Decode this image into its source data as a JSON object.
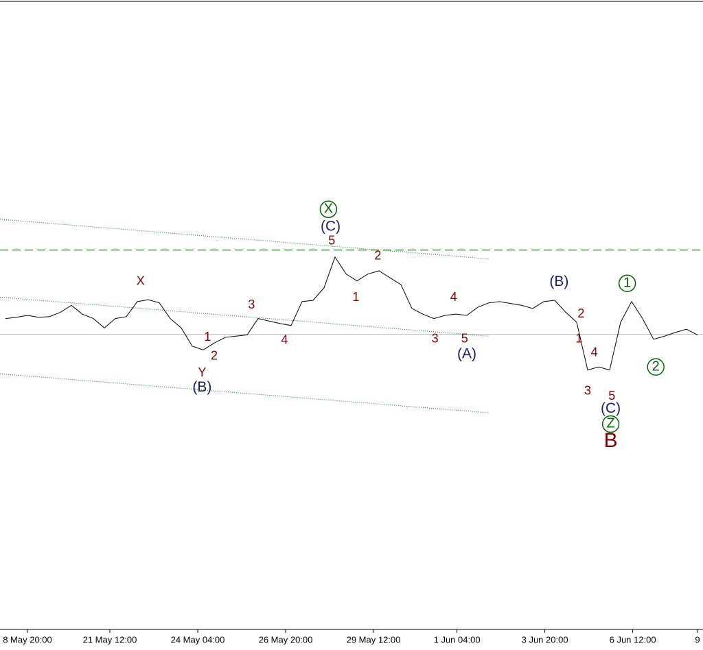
{
  "chart_data": {
    "type": "line",
    "x": [
      0,
      1,
      2,
      3,
      4,
      5,
      6,
      7,
      8,
      9,
      10,
      11,
      12,
      13,
      14,
      15,
      16,
      17,
      18,
      19,
      20,
      21,
      22,
      23,
      24,
      25,
      26,
      27,
      28,
      29,
      30,
      31,
      32,
      33,
      34,
      35,
      36,
      37,
      38,
      39,
      40,
      41,
      42,
      43,
      44,
      45,
      46,
      47,
      48,
      49,
      50,
      51,
      52,
      53,
      54,
      55,
      56,
      57,
      58,
      59,
      60,
      61,
      62,
      63
    ],
    "series": [
      {
        "color": "#000000",
        "values": [
          49.5,
          49.7,
          50.0,
          49.7,
          49.8,
          50.5,
          51.6,
          50.2,
          49.5,
          48.0,
          49.5,
          49.8,
          52.2,
          52.5,
          52.0,
          49.5,
          48.0,
          45.1,
          44.5,
          45.6,
          46.5,
          46.7,
          46.9,
          49.5,
          49.1,
          48.7,
          48.4,
          52.2,
          52.4,
          54.4,
          59.3,
          56.6,
          55.5,
          56.6,
          57.1,
          56.0,
          54.9,
          51.1,
          50.2,
          49.5,
          50.0,
          50.2,
          50.0,
          51.3,
          52.0,
          52.2,
          51.9,
          51.6,
          51.1,
          52.2,
          52.4,
          50.5,
          48.9,
          41.3,
          41.8,
          41.3,
          48.9,
          52.2,
          49.5,
          46.2,
          46.7,
          47.3,
          47.8,
          46.9
        ]
      }
    ],
    "xlim": [
      -0.5,
      63.5
    ],
    "ylim": [
      0,
      100
    ],
    "xticks": [
      {
        "value": 2,
        "label": "8 May 20:00"
      },
      {
        "value": 9.5,
        "label": "21 May 12:00"
      },
      {
        "value": 17.5,
        "label": "24 May 04:00"
      },
      {
        "value": 25.5,
        "label": "26 May 20:00"
      },
      {
        "value": 33.5,
        "label": "29 May 12:00"
      },
      {
        "value": 41.1,
        "label": "1 Jun 04:00"
      },
      {
        "value": 49.1,
        "label": "3 Jun 20:00"
      },
      {
        "value": 57.1,
        "label": "6 Jun 12:00"
      },
      {
        "value": 63,
        "label": "9"
      }
    ],
    "hlines": [
      {
        "y": 47,
        "color": "#c0c0c0",
        "style": "solid"
      },
      {
        "y": 60.4,
        "color": "#006400",
        "style": "dashed"
      }
    ],
    "trendlines": [
      {
        "x": [
          -0.5,
          44
        ],
        "y": [
          65.3,
          59.0
        ],
        "color": "#008000"
      },
      {
        "x": [
          -0.5,
          44
        ],
        "y": [
          52.9,
          46.7
        ],
        "color": "#008000"
      },
      {
        "x": [
          -0.5,
          44
        ],
        "y": [
          40.7,
          34.5
        ],
        "color": "#008000"
      }
    ],
    "annotations": [
      {
        "text": "X",
        "x": 12.3,
        "y": 55.4,
        "color": "#800000"
      },
      {
        "text": "Y",
        "x": 17.9,
        "y": 40.8,
        "color": "#800000"
      },
      {
        "text": "(B)",
        "x": 17.9,
        "y": 38.5,
        "color": "#1a1a6e"
      },
      {
        "text": "1",
        "x": 18.4,
        "y": 46.5,
        "color": "#800000"
      },
      {
        "text": "2",
        "x": 19.0,
        "y": 43.5,
        "color": "#800000"
      },
      {
        "text": "3",
        "x": 22.4,
        "y": 51.6,
        "color": "#800000"
      },
      {
        "text": "4",
        "x": 25.4,
        "y": 46.0,
        "color": "#800000"
      },
      {
        "text": "X",
        "x": 29.4,
        "y": 66.9,
        "color": "#006400",
        "circled": true
      },
      {
        "text": "(C)",
        "x": 29.6,
        "y": 64.1,
        "color": "#1a1a6e"
      },
      {
        "text": "5",
        "x": 29.7,
        "y": 61.8,
        "color": "#800000"
      },
      {
        "text": "2",
        "x": 33.9,
        "y": 59.4,
        "color": "#800000"
      },
      {
        "text": "1",
        "x": 31.9,
        "y": 52.8,
        "color": "#800000"
      },
      {
        "text": "3",
        "x": 39.1,
        "y": 46.2,
        "color": "#800000"
      },
      {
        "text": "4",
        "x": 40.8,
        "y": 52.8,
        "color": "#800000"
      },
      {
        "text": "5",
        "x": 41.8,
        "y": 46.2,
        "color": "#800000"
      },
      {
        "text": "(A)",
        "x": 42.0,
        "y": 43.8,
        "color": "#1a1a6e"
      },
      {
        "text": "(B)",
        "x": 50.4,
        "y": 55.3,
        "color": "#1a1a6e"
      },
      {
        "text": "2",
        "x": 52.4,
        "y": 50.2,
        "color": "#800000"
      },
      {
        "text": "1",
        "x": 52.2,
        "y": 46.2,
        "color": "#800000"
      },
      {
        "text": "4",
        "x": 53.6,
        "y": 44.0,
        "color": "#800000"
      },
      {
        "text": "3",
        "x": 53.0,
        "y": 37.9,
        "color": "#800000"
      },
      {
        "text": "5",
        "x": 55.2,
        "y": 37.1,
        "color": "#800000"
      },
      {
        "text": "(C)",
        "x": 55.1,
        "y": 35.1,
        "color": "#1a1a6e"
      },
      {
        "text": "Z",
        "x": 55.1,
        "y": 32.7,
        "color": "#006400",
        "circled": true
      },
      {
        "text": "B",
        "x": 55.1,
        "y": 29.9,
        "color": "#800000",
        "emphasis": true
      },
      {
        "text": "1",
        "x": 56.6,
        "y": 55.1,
        "color": "#006400",
        "circled": true
      },
      {
        "text": "2",
        "x": 59.2,
        "y": 41.8,
        "color": "#006400",
        "circled": true
      }
    ]
  }
}
